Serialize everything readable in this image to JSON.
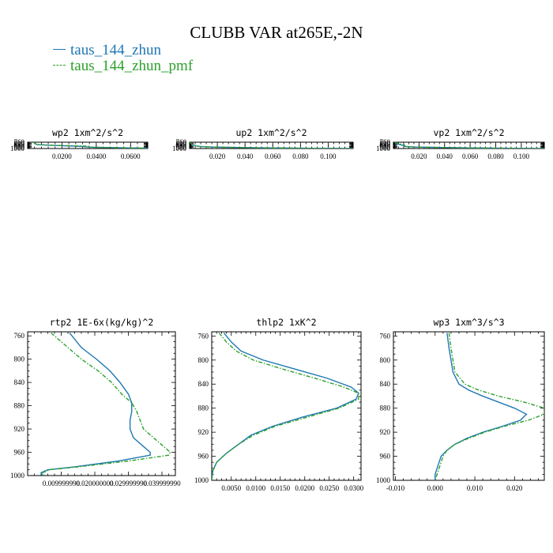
{
  "page_title": "CLUBB VAR at265E,-2N",
  "legend": [
    {
      "label": "taus_144_zhun",
      "color": "#1f77b4",
      "style": "solid"
    },
    {
      "label": "taus_144_zhun_pmf",
      "color": "#2ca02c",
      "style": "dashed"
    }
  ],
  "chart_data": [
    {
      "type": "line",
      "title": "wp2  1xm^2/s^2",
      "xlim": [
        0,
        0.07
      ],
      "ylim": [
        1000,
        753
      ],
      "y_reversed": true,
      "xticks": [
        0.02,
        0.04,
        0.06
      ],
      "xtick_labels": [
        "0.0200",
        "0.0400",
        "0.0600"
      ],
      "yticks": [
        760,
        800,
        840,
        880,
        920,
        960,
        1000
      ],
      "series": [
        {
          "y": [
            755,
            780,
            800,
            820,
            840,
            850,
            860,
            870,
            880,
            890,
            900,
            920,
            940,
            950,
            960,
            970,
            980,
            985,
            990,
            995,
            1000
          ],
          "x": [
            0.0035,
            0.004,
            0.0045,
            0.0048,
            0.005,
            0.0065,
            0.009,
            0.012,
            0.015,
            0.02,
            0.025,
            0.032,
            0.035,
            0.038,
            0.045,
            0.055,
            0.063,
            0.068,
            0.0705,
            0.0695,
            0.064
          ]
        },
        {
          "y": [
            755,
            780,
            800,
            820,
            840,
            850,
            860,
            870,
            880,
            890,
            900,
            910,
            920,
            930,
            940,
            950,
            960,
            970,
            980,
            985,
            990,
            995,
            1000
          ],
          "x": [
            0.0035,
            0.004,
            0.0045,
            0.0048,
            0.005,
            0.007,
            0.0105,
            0.014,
            0.019,
            0.025,
            0.031,
            0.0355,
            0.0365,
            0.0365,
            0.036,
            0.038,
            0.044,
            0.054,
            0.062,
            0.066,
            0.0685,
            0.069,
            0.066
          ]
        }
      ]
    },
    {
      "type": "line",
      "title": "up2  1xm^2/s^2",
      "xlim": [
        0,
        0.118
      ],
      "ylim": [
        1000,
        753
      ],
      "y_reversed": true,
      "xticks": [
        0.02,
        0.04,
        0.06,
        0.08,
        0.1
      ],
      "xtick_labels": [
        "0.020",
        "0.040",
        "0.060",
        "0.080",
        "0.100"
      ],
      "yticks": [
        760,
        800,
        840,
        880,
        920,
        960,
        1000
      ],
      "series": [
        {
          "y": [
            755,
            800,
            840,
            880,
            900,
            920,
            930,
            940,
            950,
            960,
            970,
            980,
            990,
            995,
            1000
          ],
          "x": [
            0.0005,
            0.001,
            0.002,
            0.0035,
            0.005,
            0.008,
            0.011,
            0.016,
            0.024,
            0.035,
            0.05,
            0.068,
            0.09,
            0.104,
            0.118
          ]
        },
        {
          "y": [
            755,
            800,
            840,
            880,
            900,
            920,
            930,
            940,
            950,
            960,
            970,
            980,
            990,
            995,
            1000
          ],
          "x": [
            0.0005,
            0.001,
            0.0015,
            0.003,
            0.0045,
            0.0075,
            0.0105,
            0.015,
            0.022,
            0.033,
            0.048,
            0.066,
            0.088,
            0.102,
            0.118
          ]
        }
      ]
    },
    {
      "type": "line",
      "title": "vp2  1xm^2/s^2",
      "xlim": [
        0,
        0.118
      ],
      "ylim": [
        1000,
        753
      ],
      "y_reversed": true,
      "xticks": [
        0.02,
        0.04,
        0.06,
        0.08,
        0.1
      ],
      "xtick_labels": [
        "0.020",
        "0.040",
        "0.060",
        "0.080",
        "0.100"
      ],
      "yticks": [
        760,
        800,
        840,
        880,
        920,
        960,
        1000
      ],
      "series": [
        {
          "y": [
            755,
            800,
            820,
            840,
            860,
            880,
            900,
            920,
            940,
            950,
            960,
            970,
            980,
            990,
            1000
          ],
          "x": [
            0.001,
            0.002,
            0.003,
            0.0045,
            0.006,
            0.0075,
            0.008,
            0.009,
            0.017,
            0.026,
            0.038,
            0.053,
            0.07,
            0.09,
            0.118
          ]
        },
        {
          "y": [
            755,
            800,
            820,
            840,
            860,
            880,
            900,
            920,
            940,
            950,
            960,
            970,
            980,
            990,
            1000
          ],
          "x": [
            0.001,
            0.003,
            0.005,
            0.007,
            0.0085,
            0.009,
            0.0085,
            0.01,
            0.016,
            0.024,
            0.036,
            0.05,
            0.068,
            0.088,
            0.118
          ]
        }
      ]
    },
    {
      "type": "line",
      "title": "rtp2  1E-6x(kg/kg)^2",
      "xlim": [
        0,
        0.044
      ],
      "ylim": [
        1000,
        753
      ],
      "y_reversed": true,
      "xticks": [
        0.01,
        0.02,
        0.03,
        0.04
      ],
      "xtick_labels": [
        "0.009999990",
        "0.020000000",
        "0.029999990",
        "0.039999990"
      ],
      "yticks": [
        760,
        800,
        840,
        880,
        920,
        960,
        1000
      ],
      "series": [
        {
          "y": [
            755,
            780,
            800,
            820,
            840,
            860,
            875,
            890,
            905,
            920,
            935,
            950,
            960,
            965,
            975,
            985,
            990,
            995,
            1000
          ],
          "x": [
            0.0125,
            0.016,
            0.0205,
            0.0245,
            0.0275,
            0.03,
            0.031,
            0.031,
            0.0305,
            0.0305,
            0.0315,
            0.0345,
            0.0365,
            0.0365,
            0.027,
            0.014,
            0.006,
            0.004,
            0.0045
          ]
        },
        {
          "y": [
            755,
            780,
            800,
            820,
            840,
            860,
            875,
            890,
            905,
            920,
            935,
            950,
            960,
            965,
            975,
            985,
            990,
            995,
            1000
          ],
          "x": [
            0.007,
            0.012,
            0.016,
            0.021,
            0.025,
            0.028,
            0.031,
            0.0325,
            0.0335,
            0.0345,
            0.0375,
            0.0405,
            0.0425,
            0.042,
            0.03,
            0.015,
            0.0065,
            0.0045,
            0.005
          ]
        }
      ]
    },
    {
      "type": "line",
      "title": "thlp2  1xK^2",
      "xlim": [
        0.001,
        0.0315
      ],
      "ylim": [
        1000,
        753
      ],
      "y_reversed": true,
      "xticks": [
        0.005,
        0.01,
        0.015,
        0.02,
        0.025,
        0.03
      ],
      "xtick_labels": [
        "0.0050",
        "0.0100",
        "0.0150",
        "0.0200",
        "0.0250",
        "0.0300"
      ],
      "yticks": [
        760,
        800,
        840,
        880,
        920,
        960,
        1000
      ],
      "series": [
        {
          "y": [
            755,
            770,
            785,
            800,
            815,
            830,
            845,
            855,
            865,
            880,
            895,
            910,
            925,
            940,
            955,
            970,
            985,
            1000
          ],
          "x": [
            0.0035,
            0.005,
            0.007,
            0.0115,
            0.018,
            0.0245,
            0.0295,
            0.031,
            0.0305,
            0.0265,
            0.0195,
            0.0135,
            0.009,
            0.0065,
            0.004,
            0.002,
            0.0012,
            0.001
          ]
        },
        {
          "y": [
            755,
            770,
            785,
            800,
            815,
            830,
            845,
            855,
            865,
            880,
            895,
            910,
            925,
            940,
            955,
            970,
            985,
            1000
          ],
          "x": [
            0.0025,
            0.004,
            0.006,
            0.0095,
            0.0155,
            0.022,
            0.028,
            0.031,
            0.031,
            0.027,
            0.0205,
            0.014,
            0.0095,
            0.0065,
            0.004,
            0.002,
            0.0012,
            0.001
          ]
        }
      ]
    },
    {
      "type": "line",
      "title": "wp3  1xm^3/s^3",
      "xlim": [
        -0.0105,
        0.0275
      ],
      "ylim": [
        1000,
        753
      ],
      "y_reversed": true,
      "xticks": [
        -0.01,
        0.0,
        0.01,
        0.02
      ],
      "xtick_labels": [
        "-0.010",
        "0.000",
        "0.010",
        "0.020"
      ],
      "yticks": [
        760,
        800,
        840,
        880,
        920,
        960,
        1000
      ],
      "series": [
        {
          "y": [
            755,
            780,
            800,
            820,
            840,
            850,
            860,
            870,
            880,
            890,
            900,
            910,
            920,
            930,
            940,
            950,
            960,
            970,
            980,
            990,
            1000
          ],
          "x": [
            0.003,
            0.0035,
            0.004,
            0.0045,
            0.006,
            0.0085,
            0.012,
            0.016,
            0.02,
            0.023,
            0.0215,
            0.017,
            0.012,
            0.008,
            0.005,
            0.003,
            0.0015,
            0.001,
            0.0005,
            0.0,
            0.0
          ]
        },
        {
          "y": [
            755,
            780,
            800,
            820,
            840,
            850,
            860,
            870,
            880,
            890,
            900,
            910,
            920,
            930,
            940,
            950,
            960,
            970,
            980,
            990,
            1000
          ],
          "x": [
            0.0035,
            0.004,
            0.0045,
            0.005,
            0.0075,
            0.011,
            0.016,
            0.0225,
            0.0275,
            0.0275,
            0.0235,
            0.0175,
            0.0125,
            0.0085,
            0.005,
            0.003,
            0.002,
            0.0015,
            0.001,
            0.0005,
            0.0
          ]
        }
      ]
    }
  ]
}
